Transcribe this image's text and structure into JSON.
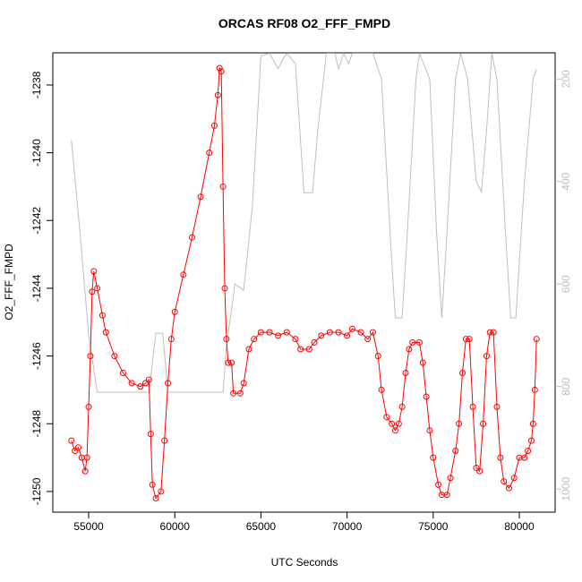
{
  "chart_data": {
    "type": "line",
    "title": "ORCAS RF08 O2_FFF_FMPD",
    "x_label": "UTC Seconds",
    "y_label": "O2_FFF_FMPD",
    "xlim": [
      52920,
      82080
    ],
    "xticks": [
      55000,
      60000,
      65000,
      70000,
      75000,
      80000
    ],
    "ylim": [
      -1250.61,
      -1237.05
    ],
    "yticks": [
      -1250,
      -1248,
      -1246,
      -1244,
      -1242,
      -1240,
      -1238
    ],
    "y2lim": [
      1045,
      149
    ],
    "y2ticks": [
      200,
      400,
      600,
      800,
      1000
    ],
    "series": [
      {
        "color": "#ff0000",
        "marker": "circle",
        "x": [
          54000,
          54200,
          54400,
          54600,
          54800,
          54900,
          55000,
          55100,
          55200,
          55300,
          55500,
          55800,
          56000,
          56500,
          57000,
          57500,
          58000,
          58300,
          58500,
          58600,
          58700,
          58900,
          59200,
          59400,
          59600,
          59800,
          60000,
          60500,
          61000,
          61500,
          62000,
          62300,
          62500,
          62600,
          62700,
          62800,
          62900,
          63000,
          63100,
          63300,
          63400,
          63800,
          64000,
          64300,
          64600,
          65000,
          65500,
          66000,
          66500,
          67000,
          67300,
          67800,
          68100,
          68500,
          69000,
          69500,
          70000,
          70300,
          70800,
          71200,
          71500,
          71800,
          72000,
          72300,
          72600,
          72800,
          73000,
          73200,
          73400,
          73600,
          73800,
          74200,
          74400,
          74600,
          74800,
          75000,
          75300,
          75500,
          75800,
          76000,
          76300,
          76500,
          76700,
          76900,
          77100,
          77300,
          77500,
          77700,
          77900,
          78100,
          78300,
          78500,
          78700,
          78900,
          79100,
          79400,
          79700,
          80000,
          80300,
          80500,
          80700,
          80800,
          80900,
          81000
        ],
        "values": [
          -1248.5,
          -1248.8,
          -1248.7,
          -1249.0,
          -1249.4,
          -1249.0,
          -1247.5,
          -1246.0,
          -1244.1,
          -1243.5,
          -1244.0,
          -1244.8,
          -1245.3,
          -1246.0,
          -1246.5,
          -1246.8,
          -1246.9,
          -1246.8,
          -1246.7,
          -1248.3,
          -1249.8,
          -1250.2,
          -1250.0,
          -1248.5,
          -1246.8,
          -1245.5,
          -1244.7,
          -1243.6,
          -1242.5,
          -1241.3,
          -1240.0,
          -1239.2,
          -1238.3,
          -1237.5,
          -1237.6,
          -1241.0,
          -1244.0,
          -1245.5,
          -1246.2,
          -1246.2,
          -1247.1,
          -1247.1,
          -1246.8,
          -1245.8,
          -1245.5,
          -1245.3,
          -1245.3,
          -1245.4,
          -1245.3,
          -1245.5,
          -1245.8,
          -1245.8,
          -1245.6,
          -1245.4,
          -1245.3,
          -1245.3,
          -1245.4,
          -1245.2,
          -1245.3,
          -1245.5,
          -1245.3,
          -1246.0,
          -1247.0,
          -1247.8,
          -1248.0,
          -1248.2,
          -1248.0,
          -1247.5,
          -1246.5,
          -1245.8,
          -1245.6,
          -1245.6,
          -1246.2,
          -1247.2,
          -1248.2,
          -1249.0,
          -1249.8,
          -1250.1,
          -1250.1,
          -1249.6,
          -1248.8,
          -1248.0,
          -1246.5,
          -1245.5,
          -1245.5,
          -1247.5,
          -1249.3,
          -1249.4,
          -1248.0,
          -1246.0,
          -1245.3,
          -1245.3,
          -1247.5,
          -1249.0,
          -1249.7,
          -1249.9,
          -1249.6,
          -1249.0,
          -1249.0,
          -1248.8,
          -1248.5,
          -1248.0,
          -1247.0,
          -1245.5
        ]
      },
      {
        "color": "#bebebe",
        "axis": "y2",
        "x": [
          54000,
          54500,
          55000,
          55500,
          57000,
          58500,
          58900,
          59300,
          59600,
          60000,
          62000,
          62800,
          63000,
          63500,
          64000,
          64500,
          65000,
          65500,
          66000,
          66300,
          66500,
          67000,
          67500,
          68000,
          68300,
          68800,
          69300,
          69500,
          69800,
          70100,
          70300,
          71000,
          71500,
          72000,
          72500,
          72800,
          73200,
          73500,
          74000,
          74200,
          74800,
          75200,
          75500,
          75800,
          76300,
          76600,
          77000,
          77500,
          77800,
          78100,
          78400,
          78700,
          79200,
          79500,
          79800,
          80300,
          80800,
          81000
        ],
        "values": [
          320,
          500,
          700,
          811,
          811,
          811,
          696,
          696,
          811,
          811,
          811,
          811,
          720,
          600,
          612,
          450,
          155,
          150,
          180,
          160,
          150,
          170,
          422,
          422,
          300,
          150,
          150,
          180,
          150,
          170,
          150,
          150,
          150,
          200,
          500,
          666,
          666,
          500,
          200,
          150,
          200,
          500,
          666,
          500,
          200,
          150,
          200,
          400,
          420,
          300,
          150,
          200,
          500,
          666,
          666,
          400,
          200,
          180
        ]
      }
    ]
  }
}
